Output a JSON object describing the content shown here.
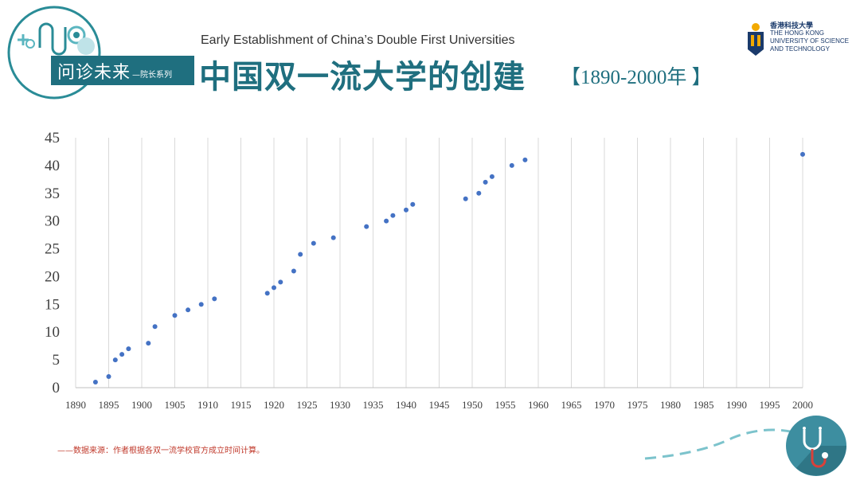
{
  "header": {
    "badge_main": "问诊未来",
    "badge_sub": "—院长系列",
    "subtitle_en": "Early Establishment of  China’s Double First Universities",
    "title_zh": "中国双一流大学的创建",
    "title_range": "【1890-2000年 】",
    "institution_cn": "香港科技大學",
    "institution_en_1": "THE HONG KONG",
    "institution_en_2": "UNIVERSITY OF SCIENCE",
    "institution_en_3": "AND TECHNOLOGY"
  },
  "footer": {
    "source_note": "——数据来源：作者根据各双一流学校官方成立时间计算。"
  },
  "colors": {
    "accent": "#1f6f7f",
    "point": "#4472c4",
    "grid": "#d9d9d9",
    "note": "#c0392b"
  },
  "chart_data": {
    "type": "scatter",
    "title": "",
    "xlabel": "",
    "ylabel": "",
    "xlim": [
      1890,
      2000
    ],
    "ylim": [
      0,
      45
    ],
    "x_ticks": [
      1890,
      1895,
      1900,
      1905,
      1910,
      1915,
      1920,
      1925,
      1930,
      1935,
      1940,
      1945,
      1950,
      1955,
      1960,
      1965,
      1970,
      1975,
      1980,
      1985,
      1990,
      1995,
      2000
    ],
    "y_ticks": [
      0,
      5,
      10,
      15,
      20,
      25,
      30,
      35,
      40,
      45
    ],
    "grid": "vertical",
    "points": [
      {
        "x": 1893,
        "y": 1
      },
      {
        "x": 1895,
        "y": 2
      },
      {
        "x": 1896,
        "y": 5
      },
      {
        "x": 1897,
        "y": 6
      },
      {
        "x": 1898,
        "y": 7
      },
      {
        "x": 1901,
        "y": 8
      },
      {
        "x": 1902,
        "y": 11
      },
      {
        "x": 1905,
        "y": 13
      },
      {
        "x": 1907,
        "y": 14
      },
      {
        "x": 1909,
        "y": 15
      },
      {
        "x": 1911,
        "y": 16
      },
      {
        "x": 1919,
        "y": 17
      },
      {
        "x": 1920,
        "y": 18
      },
      {
        "x": 1921,
        "y": 19
      },
      {
        "x": 1923,
        "y": 21
      },
      {
        "x": 1924,
        "y": 24
      },
      {
        "x": 1926,
        "y": 26
      },
      {
        "x": 1929,
        "y": 27
      },
      {
        "x": 1934,
        "y": 29
      },
      {
        "x": 1937,
        "y": 30
      },
      {
        "x": 1938,
        "y": 31
      },
      {
        "x": 1940,
        "y": 32
      },
      {
        "x": 1941,
        "y": 33
      },
      {
        "x": 1949,
        "y": 34
      },
      {
        "x": 1951,
        "y": 35
      },
      {
        "x": 1952,
        "y": 37
      },
      {
        "x": 1953,
        "y": 38
      },
      {
        "x": 1956,
        "y": 40
      },
      {
        "x": 1958,
        "y": 41
      },
      {
        "x": 2000,
        "y": 42
      }
    ]
  }
}
